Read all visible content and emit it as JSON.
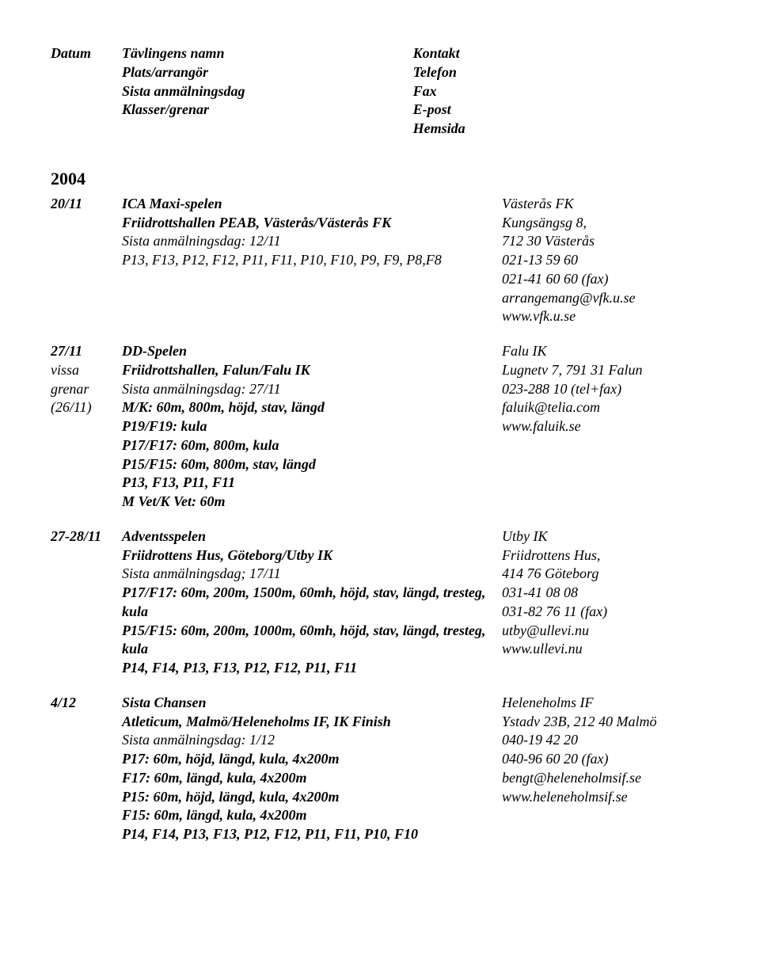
{
  "header": {
    "left": [
      "Datum",
      "Plats/arrangör",
      "Sista anmälningsdag",
      "Klasser/grenar"
    ],
    "right": [
      "Kontakt",
      "Telefon",
      "Fax",
      "E-post",
      "Hemsida"
    ],
    "leftCol1": "Tävlingens namn"
  },
  "year": "2004",
  "events": [
    {
      "date": [
        "20/11"
      ],
      "dateBold": [
        true
      ],
      "desc": [
        "ICA Maxi-spelen",
        "Friidrottshallen PEAB, Västerås/Västerås FK",
        "Sista anmälningsdag: 12/11",
        "P13, F13, P12, F12, P11, F11, P10, F10, P9, F9, P8,F8"
      ],
      "descBold": [
        true,
        true,
        false,
        false
      ],
      "contact": [
        "Västerås FK",
        "Kungsängsg 8,",
        "712 30 Västerås",
        "021-13 59 60",
        "021-41 60 60 (fax)",
        "arrangemang@vfk.u.se",
        "www.vfk.u.se"
      ]
    },
    {
      "date": [
        "27/11",
        "vissa",
        "grenar",
        "(26/11)"
      ],
      "dateBold": [
        true,
        false,
        false,
        false
      ],
      "desc": [
        "DD-Spelen",
        "Friidrottshallen, Falun/Falu IK",
        "Sista anmälningsdag: 27/11",
        "M/K: 60m, 800m, höjd, stav, längd",
        "P19/F19: kula",
        "P17/F17: 60m, 800m, kula",
        "P15/F15: 60m, 800m, stav, längd",
        "P13, F13, P11, F11",
        "M Vet/K Vet: 60m"
      ],
      "descBold": [
        true,
        true,
        false,
        true,
        true,
        true,
        true,
        true,
        true
      ],
      "contact": [
        "Falu IK",
        "Lugnetv 7, 791 31 Falun",
        "023-288 10 (tel+fax)",
        "faluik@telia.com",
        "www.faluik.se"
      ]
    },
    {
      "date": [
        "27-28/11"
      ],
      "dateBold": [
        true
      ],
      "desc": [
        "Adventsspelen",
        "Friidrottens Hus, Göteborg/Utby IK",
        "Sista anmälningsdag; 17/11",
        "P17/F17: 60m, 200m, 1500m, 60mh, höjd, stav, längd, tresteg, kula",
        "P15/F15: 60m, 200m, 1000m, 60mh, höjd, stav, längd, tresteg, kula",
        "P14, F14, P13, F13, P12, F12, P11, F11"
      ],
      "descBold": [
        true,
        true,
        false,
        true,
        true,
        true
      ],
      "contact": [
        "Utby IK",
        "Friidrottens Hus,",
        "414 76 Göteborg",
        "031-41 08 08",
        "031-82 76 11 (fax)",
        "utby@ullevi.nu",
        "www.ullevi.nu"
      ]
    },
    {
      "date": [
        "4/12"
      ],
      "dateBold": [
        true
      ],
      "desc": [
        "Sista Chansen",
        "Atleticum, Malmö/Heleneholms IF, IK Finish",
        "Sista anmälningsdag: 1/12",
        "P17: 60m, höjd, längd, kula, 4x200m",
        "F17: 60m, längd, kula, 4x200m",
        "P15: 60m, höjd, längd, kula, 4x200m",
        "F15: 60m, längd, kula, 4x200m",
        "P14, F14, P13, F13, P12, F12, P11, F11, P10, F10"
      ],
      "descBold": [
        true,
        true,
        false,
        true,
        true,
        true,
        true,
        true
      ],
      "contact": [
        "Heleneholms IF",
        "Ystadv 23B, 212 40 Malmö",
        "040-19 42 20",
        "040-96 60 20 (fax)",
        "bengt@heleneholmsif.se",
        "www.heleneholmsif.se"
      ]
    }
  ]
}
